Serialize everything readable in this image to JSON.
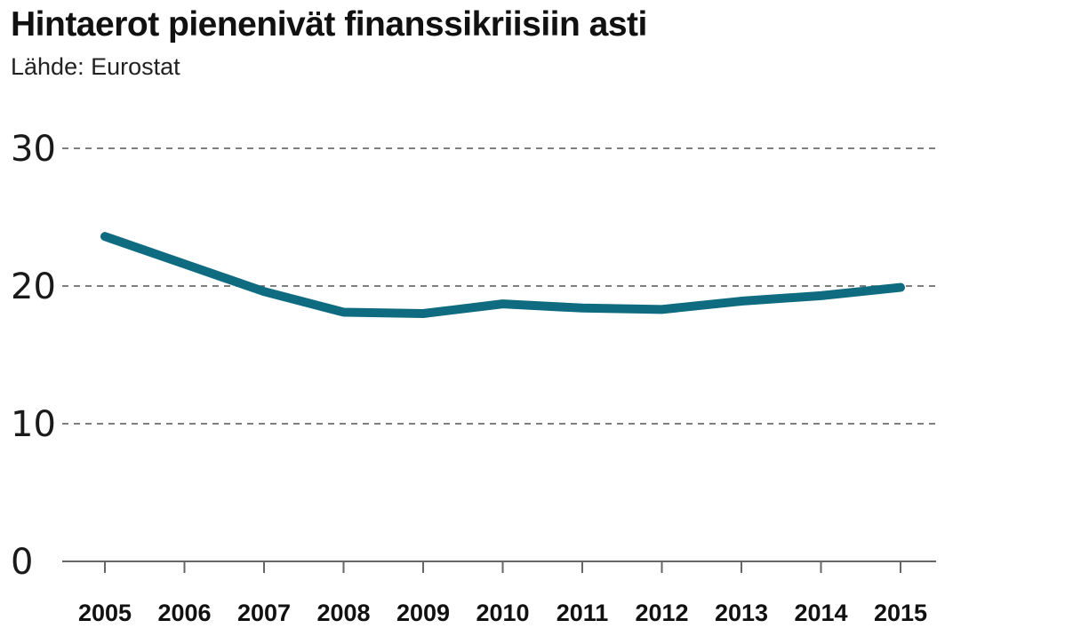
{
  "header": {
    "title": "Hintaerot pienenivät finanssikriisiin asti",
    "source": "Lähde: Eurostat"
  },
  "colors": {
    "line": "#0e6b80",
    "grid": "#555555",
    "axis": "#666666",
    "text": "#111111"
  },
  "chart_data": {
    "type": "line",
    "title": "Hintaerot pienenivät finanssikriisiin asti",
    "subtitle": "Lähde: Eurostat",
    "xlabel": "",
    "ylabel": "",
    "categories": [
      "2005",
      "2006",
      "2007",
      "2008",
      "2009",
      "2010",
      "2011",
      "2012",
      "2013",
      "2014",
      "2015"
    ],
    "series": [
      {
        "values": [
          23.6,
          21.6,
          19.6,
          18.1,
          18.0,
          18.7,
          18.4,
          18.3,
          18.9,
          19.3,
          19.9
        ]
      }
    ],
    "ylim": [
      0,
      30
    ],
    "yticks": [
      0,
      10,
      20,
      30
    ],
    "grid": true,
    "grid_style": "dashed",
    "legend": "none"
  }
}
